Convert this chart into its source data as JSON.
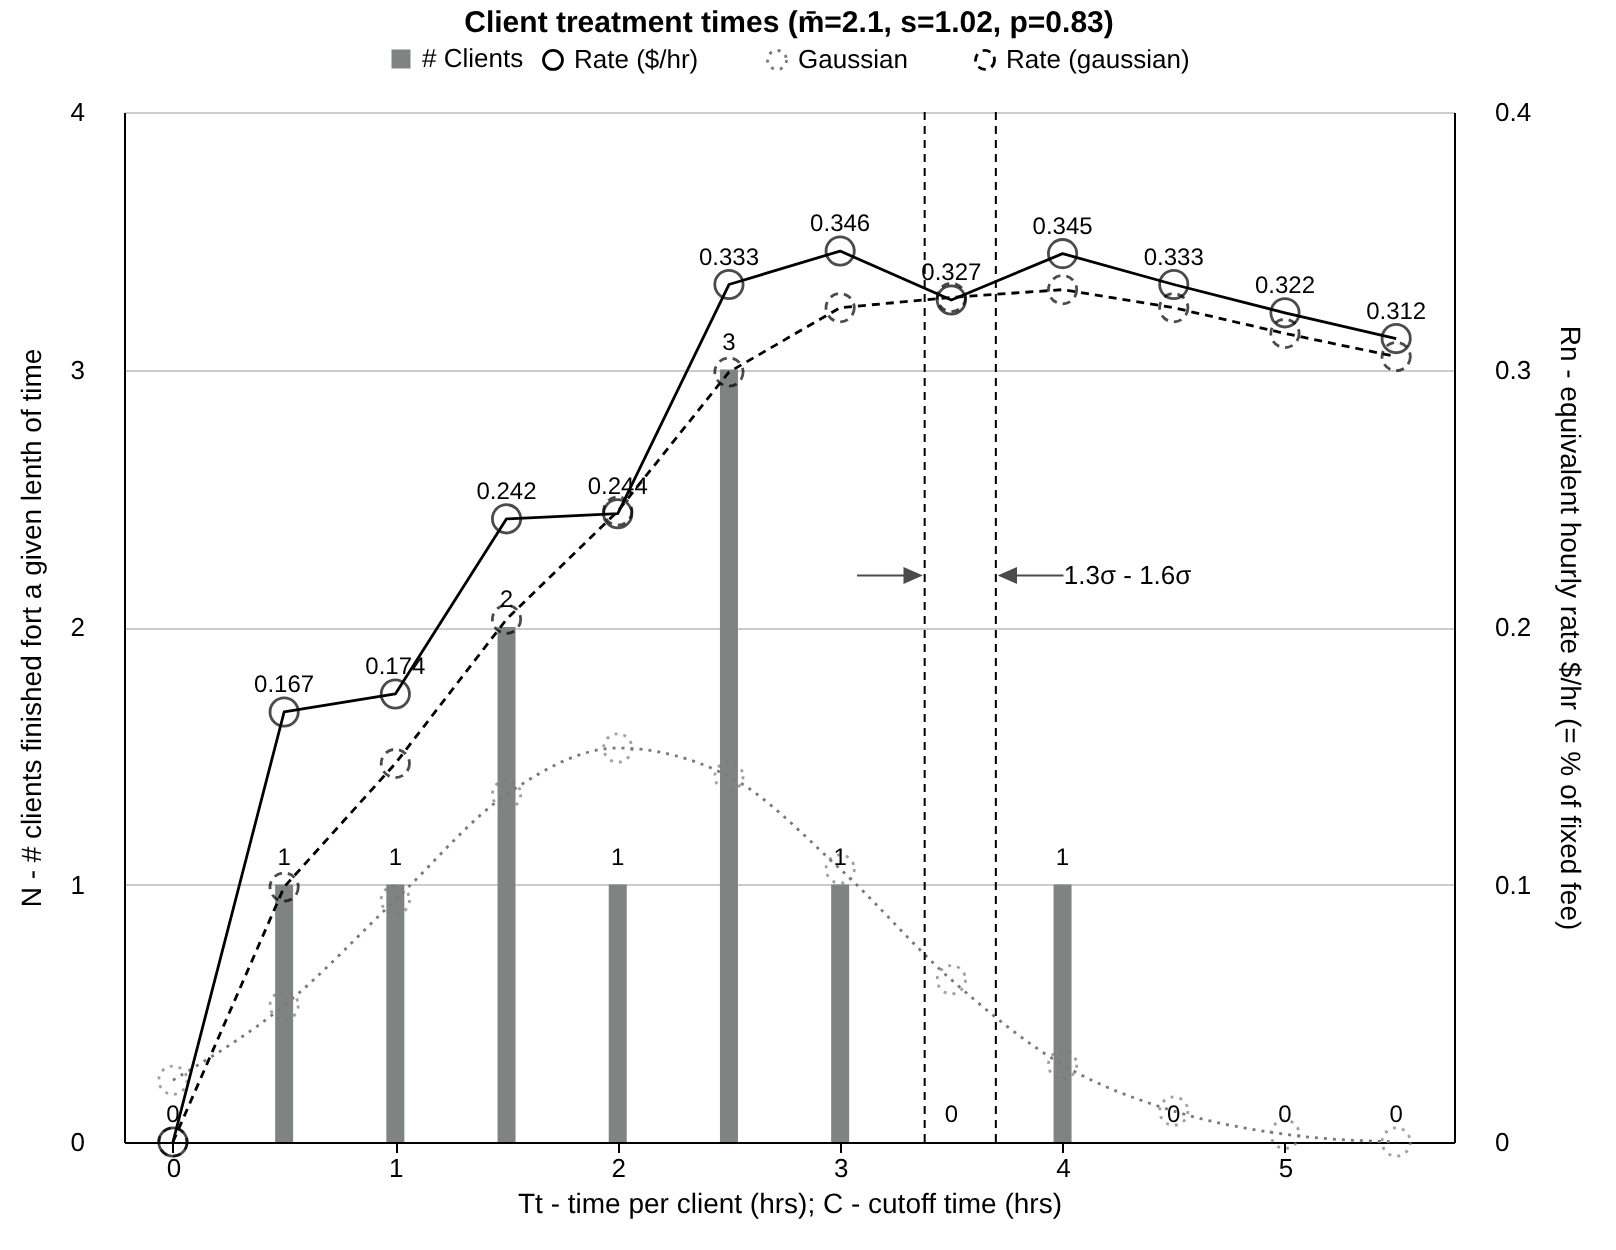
{
  "chart_data": {
    "type": "bar",
    "title": "Client treatment times (m̄=2.1, s=1.02, p=0.83)",
    "xlabel": "Tt - time per client (hrs);  C - cutoff time (hrs)",
    "ylabel": "N - # clients finished fort a given lenth of time",
    "y2label": "Rn - equivalent hourly rate $/hr (= % of fixed fee)",
    "x": [
      0,
      0.5,
      1,
      1.5,
      2,
      2.5,
      3,
      3.5,
      4,
      4.5,
      5,
      5.5
    ],
    "series": [
      {
        "name": "# Clients",
        "color": "#7f8482",
        "values": [
          0,
          1,
          1,
          2,
          1,
          3,
          1,
          0,
          1,
          0,
          0,
          0
        ],
        "value_labels": [
          "0",
          "1",
          "1",
          "2",
          "1",
          "3",
          "1",
          "0",
          "1",
          "0",
          "0",
          "0"
        ]
      },
      {
        "name": "Rate ($/hr)",
        "type": "line",
        "axis": "y2",
        "color": "#000000",
        "line_style": "solid",
        "values": [
          0,
          0.167,
          0.174,
          0.242,
          0.244,
          0.333,
          0.346,
          0.327,
          0.345,
          0.333,
          0.322,
          0.312
        ],
        "value_labels": [
          null,
          "0.167",
          "0.174",
          "0.242",
          "0.244",
          "0.333",
          "0.346",
          "0.327",
          "0.345",
          "0.333",
          "0.322",
          "0.312"
        ]
      },
      {
        "name": "Gaussian",
        "type": "line",
        "color": "#7a7a7a",
        "line_style": "dotted",
        "values": [
          0.24,
          0.53,
          0.94,
          1.35,
          1.53,
          1.42,
          1.06,
          0.63,
          0.3,
          0.12,
          0.03,
          0
        ]
      },
      {
        "name": "Rate (gaussian)",
        "type": "line",
        "axis": "y2",
        "color": "#000000",
        "line_style": "dashed",
        "values": [
          0,
          0.099,
          0.147,
          0.203,
          0.245,
          0.299,
          0.324,
          0.328,
          0.331,
          0.324,
          0.314,
          0.305
        ]
      }
    ],
    "xlim": [
      -0.22,
      5.76
    ],
    "xticks": [
      0,
      1,
      2,
      3,
      4,
      5
    ],
    "ylim": [
      0,
      4
    ],
    "yticks": [
      0,
      1,
      2,
      3,
      4
    ],
    "y2lim": [
      0,
      0.4
    ],
    "y2ticks": [
      0,
      0.1,
      0.2,
      0.3,
      0.4
    ],
    "ref_lines": [
      {
        "axis": "x",
        "value": 3.38,
        "line_style": "dashed"
      },
      {
        "axis": "x",
        "value": 3.7,
        "line_style": "dashed"
      }
    ],
    "annotations": [
      "1.3σ - 1.6σ"
    ],
    "grid": "y",
    "legend": "top",
    "marker": "circle"
  }
}
